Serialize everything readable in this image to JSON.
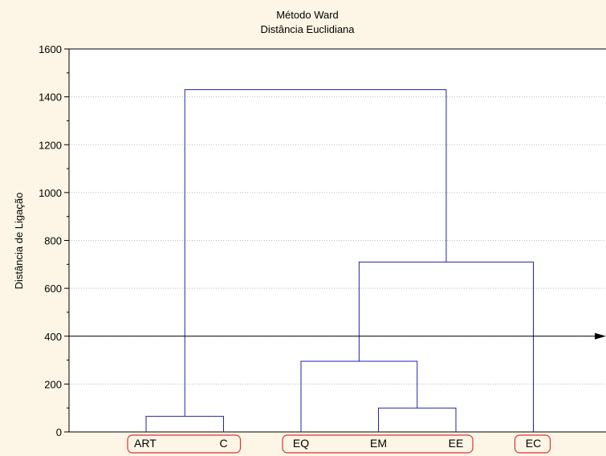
{
  "chart_data": {
    "type": "dendrogram",
    "title": "Método Ward",
    "subtitle": "Distância Euclidiana",
    "ylabel": "Distância de Ligação",
    "xlabel": "",
    "ylim": [
      0,
      1600
    ],
    "yticks": [
      "0",
      "200",
      "400",
      "600",
      "800",
      "1000",
      "1200",
      "1400",
      "1600"
    ],
    "grid": true,
    "leaves": [
      "ART",
      "C",
      "EQ",
      "EM",
      "EE",
      "EC"
    ],
    "leaf_groups": [
      [
        "ART",
        "C"
      ],
      [
        "EQ",
        "EM",
        "EE"
      ],
      [
        "EC"
      ]
    ],
    "merges": [
      {
        "left": "ART",
        "right": "C",
        "height": 65
      },
      {
        "left": "EM",
        "right": "EE",
        "height": 100
      },
      {
        "left": "EQ",
        "right": "EM+EE",
        "height": 295
      },
      {
        "left": "EQ+EM+EE",
        "right": "EC",
        "height": 710
      },
      {
        "left": "ART+C",
        "right": "EQ+EM+EE+EC",
        "height": 1430
      }
    ],
    "cut_line": 400,
    "colors": {
      "background": "#fdf6e6",
      "plot_area": "#ffffff",
      "branches": "#2222aa",
      "leaf_boxes": "#e03030",
      "cut_line": "#000000"
    }
  }
}
